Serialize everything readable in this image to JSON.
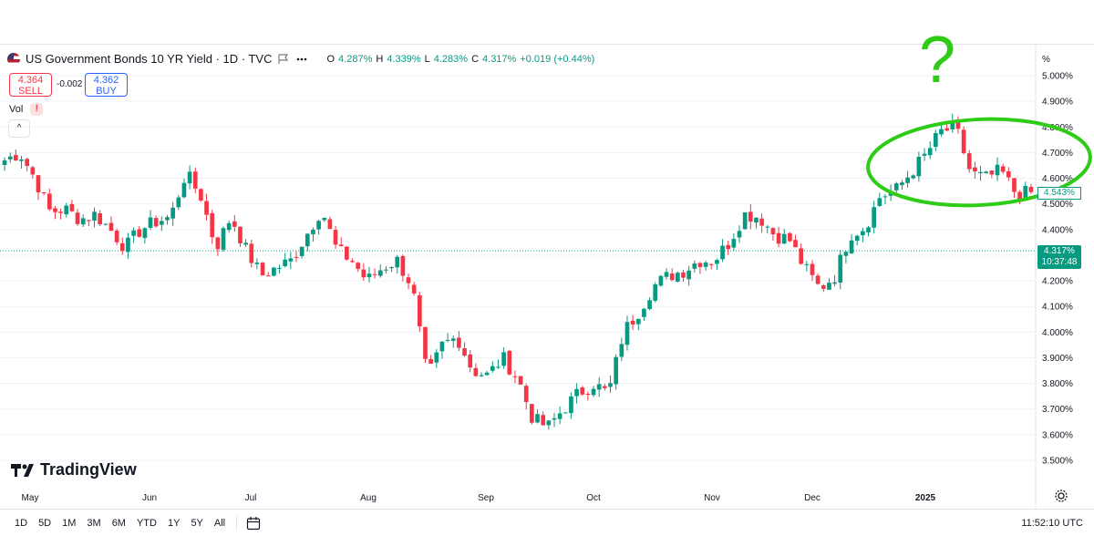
{
  "header": {
    "title": "US Government Bonds 10 YR Yield · 1D · TVC",
    "ohlc": [
      {
        "k": "O",
        "v": "4.287%"
      },
      {
        "k": "H",
        "v": "4.339%"
      },
      {
        "k": "L",
        "v": "4.283%"
      },
      {
        "k": "C",
        "v": "4.317%"
      }
    ],
    "change": "+0.019 (+0.44%)",
    "sell_price": "4.364",
    "sell_label": "SELL",
    "spread": "-0.002",
    "buy_price": "4.362",
    "buy_label": "BUY",
    "vol_label": "Vol",
    "vol_warning": "!",
    "collapse_glyph": "^"
  },
  "axis": {
    "pct_label": "%",
    "current_price": "4.317%",
    "countdown": "10:37:48",
    "last_marker": "4.543%"
  },
  "logo_text": "TradingView",
  "timeframes": [
    "1D",
    "5D",
    "1M",
    "3M",
    "6M",
    "YTD",
    "1Y",
    "5Y",
    "All"
  ],
  "clock": "11:52:10 UTC",
  "annotation": {
    "question_mark": "?"
  },
  "colors": {
    "up": "#089981",
    "down": "#f23645",
    "annotation": "#2ecc17"
  },
  "icons": {
    "flag": "us-flag-icon",
    "calendar": "calendar-icon",
    "settings": "gear-icon",
    "more": "more-icon"
  },
  "chart_data": {
    "type": "candlestick",
    "title": "US Government Bonds 10 YR Yield · 1D · TVC",
    "ylabel": "%",
    "ylim": [
      3.45,
      5.05
    ],
    "yticks": [
      "5.000%",
      "4.900%",
      "4.800%",
      "4.700%",
      "4.600%",
      "4.500%",
      "4.400%",
      "4.300%",
      "4.200%",
      "4.100%",
      "4.000%",
      "3.900%",
      "3.800%",
      "3.700%",
      "3.600%",
      "3.500%"
    ],
    "xticks": [
      "May",
      "Jun",
      "Jul",
      "Aug",
      "Sep",
      "Oct",
      "Nov",
      "Dec",
      "2025"
    ],
    "current_price": 4.317,
    "close_path": [
      4.67,
      4.7,
      4.6,
      4.47,
      4.48,
      4.44,
      4.46,
      4.4,
      4.33,
      4.4,
      4.43,
      4.45,
      4.62,
      4.53,
      4.33,
      4.45,
      4.32,
      4.22,
      4.25,
      4.28,
      4.38,
      4.48,
      4.32,
      4.28,
      4.2,
      4.25,
      4.28,
      4.18,
      3.82,
      3.95,
      3.98,
      3.85,
      3.83,
      3.9,
      3.82,
      3.66,
      3.63,
      3.7,
      3.76,
      3.8,
      3.76,
      4.0,
      4.08,
      4.18,
      4.22,
      4.24,
      4.28,
      4.28,
      4.35,
      4.46,
      4.45,
      4.38,
      4.36,
      4.25,
      4.17,
      4.22,
      4.38,
      4.41,
      4.53,
      4.55,
      4.62,
      4.69,
      4.78,
      4.8,
      4.62,
      4.6,
      4.63,
      4.54,
      4.543
    ]
  }
}
